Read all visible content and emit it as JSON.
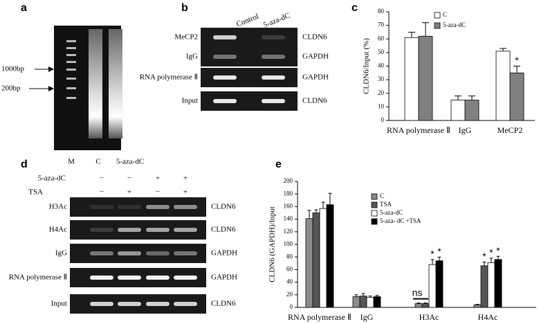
{
  "panels": {
    "a": {
      "label": "a",
      "markers": [
        "1000bp",
        "200bp"
      ],
      "lanes": [
        "M",
        "C",
        "5-aza-dC"
      ]
    },
    "b": {
      "label": "b",
      "columns": [
        "Control",
        "5-aza-dC"
      ],
      "rows": [
        {
          "antibody": "MeCP2",
          "gene": "CLDN6"
        },
        {
          "antibody": "IgG",
          "gene": "GAPDH"
        },
        {
          "antibody": "RNA polymerase Ⅱ",
          "gene": "GAPDH"
        },
        {
          "antibody": "Input",
          "gene": "CLDN6"
        }
      ]
    },
    "d": {
      "label": "d",
      "treatments": [
        {
          "name": "5-aza-dC",
          "signs": [
            "−",
            "−",
            "+",
            "+"
          ]
        },
        {
          "name": "TSA",
          "signs": [
            "−",
            "+",
            "−",
            "+"
          ]
        }
      ],
      "rows": [
        {
          "antibody": "H3Ac",
          "gene": "CLDN6"
        },
        {
          "antibody": "H4Ac",
          "gene": "CLDN6"
        },
        {
          "antibody": "IgG",
          "gene": "GAPDH"
        },
        {
          "antibody": "RNA polymerase Ⅱ",
          "gene": "GAPDH"
        },
        {
          "antibody": "Input",
          "gene": "CLDN6"
        }
      ]
    }
  },
  "chart_data": [
    {
      "type": "bar",
      "label": "c",
      "y_label": "CLDN6/Input (%)",
      "categories": [
        "RNA polymerase Ⅱ",
        "IgG",
        "MeCP2"
      ],
      "series": [
        {
          "name": "C",
          "color": "#ffffff",
          "values": [
            61,
            15,
            51
          ],
          "errors": [
            4,
            3,
            2
          ],
          "annotations": [
            null,
            null,
            null
          ]
        },
        {
          "name": "5-aza-dC",
          "color": "#808080",
          "values": [
            62,
            15,
            35
          ],
          "errors": [
            10,
            3,
            5
          ],
          "annotations": [
            null,
            null,
            "*"
          ]
        }
      ],
      "ylim": [
        0,
        80
      ],
      "yticks": [
        0,
        10,
        20,
        30,
        40,
        50,
        60,
        70,
        80
      ]
    },
    {
      "type": "bar",
      "label": "e",
      "y_label": "CLDN6 (GAPDH)/Input",
      "categories": [
        "RNA polymerase Ⅱ",
        "IgG",
        "H3Ac",
        "H4Ac"
      ],
      "series": [
        {
          "name": "C",
          "color": "#8c8c8c",
          "values": [
            141,
            17,
            6,
            4
          ],
          "errors": [
            13,
            3,
            1,
            1
          ],
          "annotations": [
            null,
            null,
            "ns",
            null
          ]
        },
        {
          "name": "TSA",
          "color": "#555555",
          "values": [
            150,
            18,
            6,
            66
          ],
          "errors": [
            5,
            4,
            1,
            6
          ],
          "annotations": [
            null,
            null,
            null,
            "*"
          ]
        },
        {
          "name": "5-aza-dC",
          "color": "#ffffff",
          "values": [
            157,
            16,
            68,
            71
          ],
          "errors": [
            10,
            2,
            8,
            7
          ],
          "annotations": [
            null,
            null,
            "*",
            "*"
          ]
        },
        {
          "name": "5-aza- dC +TSA",
          "color": "#000000",
          "values": [
            163,
            17,
            74,
            76
          ],
          "errors": [
            18,
            2,
            6,
            5
          ],
          "annotations": [
            null,
            null,
            "*",
            "*"
          ]
        }
      ],
      "ylim": [
        0,
        200
      ],
      "yticks": [
        0,
        20,
        40,
        60,
        80,
        100,
        120,
        140,
        160,
        180,
        200
      ]
    }
  ]
}
